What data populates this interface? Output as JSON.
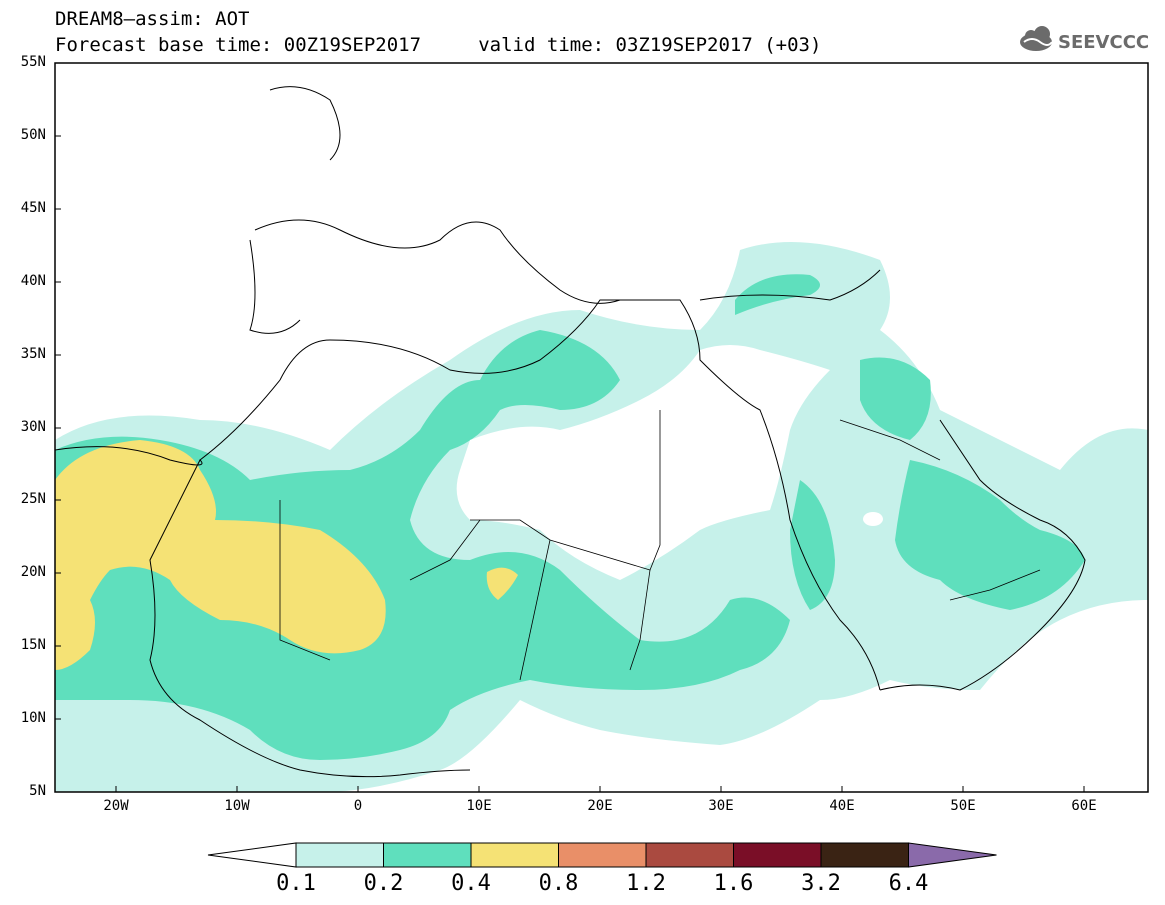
{
  "header": {
    "title_line1": "DREAM8–assim: AOT",
    "title_line2": "Forecast base time: 00Z19SEP2017     valid time: 03Z19SEP2017 (+03)",
    "logo_text": "SEEVCCC"
  },
  "map": {
    "variable": "AOT",
    "lat_labels": [
      "55N",
      "50N",
      "45N",
      "40N",
      "35N",
      "30N",
      "25N",
      "20N",
      "15N",
      "10N",
      "5N"
    ],
    "lon_labels": [
      "20W",
      "10W",
      "0",
      "10E",
      "20E",
      "30E",
      "40E",
      "50E",
      "60E"
    ]
  },
  "colorbar": {
    "labels": [
      "0.1",
      "0.2",
      "0.4",
      "0.8",
      "1.2",
      "1.6",
      "3.2",
      "6.4"
    ],
    "colors": [
      "#c6f1ea",
      "#5fdfbd",
      "#f5e275",
      "#e98f68",
      "#aa4a40",
      "#7a0e27",
      "#3a2314",
      "#8a6aaa"
    ]
  }
}
